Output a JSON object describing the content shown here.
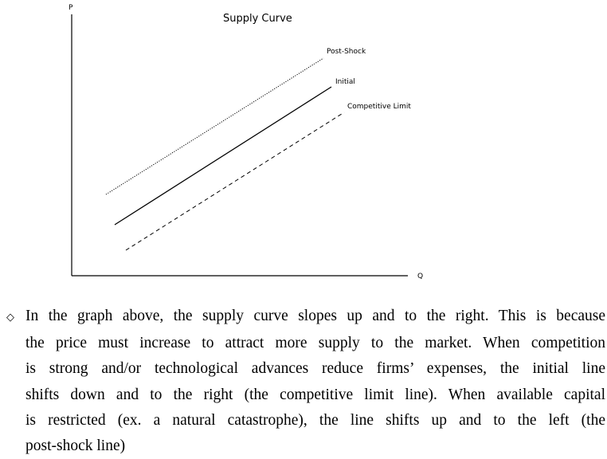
{
  "figure": {
    "title": "Supply Curve",
    "y_axis_label": "P",
    "x_axis_label": "Q",
    "lines": [
      {
        "name": "Post-Shock",
        "style": "dotted"
      },
      {
        "name": "Initial",
        "style": "solid"
      },
      {
        "name": "Competitive Limit",
        "style": "dashed"
      }
    ]
  },
  "paragraph": {
    "bullet": "◇",
    "lines": [
      "In the graph above, the supply curve slopes up and to the right. This is because",
      "the price must increase to attract more supply to the market. When competition",
      "is strong and/or technological advances reduce firms’ expenses, the initial line",
      "shifts down and to the right (the competitive limit line). When available capital",
      "is restricted (ex. a natural catastrophe), the line shifts up and to the left (the",
      "post-shock line)"
    ]
  }
}
